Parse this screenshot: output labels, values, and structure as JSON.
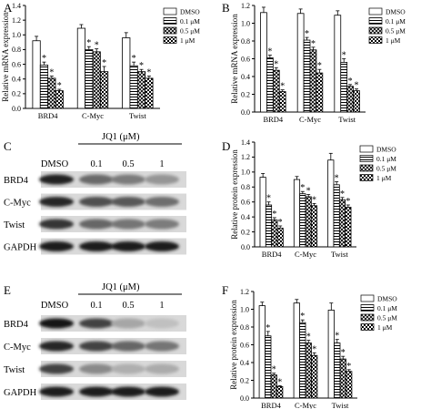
{
  "panel_letters": {
    "A": "A",
    "B": "B",
    "C": "C",
    "D": "D",
    "E": "E",
    "F": "F"
  },
  "blots": [
    {
      "panel": "C",
      "header_drug": "JQ1 (μM)",
      "lane_labels": [
        "DMSO",
        "0.1",
        "0.5",
        "1"
      ],
      "bands": [
        {
          "label": "BRD4",
          "intensity": [
            0.93,
            0.6,
            0.52,
            0.4
          ]
        },
        {
          "label": "C-Myc",
          "intensity": [
            0.92,
            0.72,
            0.68,
            0.58
          ]
        },
        {
          "label": "Twist",
          "intensity": [
            0.85,
            0.62,
            0.55,
            0.52
          ]
        },
        {
          "label": "GAPDH",
          "intensity": [
            0.95,
            0.95,
            0.95,
            0.95
          ]
        }
      ]
    },
    {
      "panel": "E",
      "header_drug": "JQ1 (μM)",
      "lane_labels": [
        "DMSO",
        "0.1",
        "0.5",
        "1"
      ],
      "bands": [
        {
          "label": "BRD4",
          "intensity": [
            1.0,
            0.78,
            0.32,
            0.2
          ]
        },
        {
          "label": "C-Myc",
          "intensity": [
            0.92,
            0.78,
            0.62,
            0.55
          ]
        },
        {
          "label": "Twist",
          "intensity": [
            0.78,
            0.45,
            0.28,
            0.3
          ]
        },
        {
          "label": "GAPDH",
          "intensity": [
            0.95,
            0.95,
            0.95,
            0.95
          ]
        }
      ]
    }
  ],
  "chart_data": [
    {
      "panel": "A",
      "type": "bar",
      "title": "",
      "xlabel": "",
      "ylabel": "Relative mRNA expression",
      "ylim": [
        0,
        1.4
      ],
      "yticks": [
        "0.0",
        "0.2",
        "0.4",
        "0.6",
        "0.8",
        "1.0",
        "1.2",
        "1.4"
      ],
      "categories": [
        "BRD4",
        "C-Myc",
        "Twist"
      ],
      "legend_position": "top-right",
      "series": [
        {
          "name": "DMSO",
          "pattern": "white",
          "values": [
            0.92,
            1.09,
            0.96
          ],
          "errors": [
            0.06,
            0.05,
            0.07
          ],
          "stars": [
            "",
            "",
            ""
          ]
        },
        {
          "name": "0.1 μM",
          "pattern": "horizontal",
          "values": [
            0.59,
            0.8,
            0.58
          ],
          "errors": [
            0.04,
            0.04,
            0.05
          ],
          "stars": [
            "*",
            "*",
            "*"
          ]
        },
        {
          "name": "0.5 μM",
          "pattern": "crosshatch",
          "values": [
            0.41,
            0.77,
            0.5
          ],
          "errors": [
            0.03,
            0.04,
            0.03
          ],
          "stars": [
            "*",
            "*",
            "*"
          ]
        },
        {
          "name": "1 μM",
          "pattern": "checker",
          "values": [
            0.24,
            0.5,
            0.41
          ],
          "errors": [
            0.02,
            0.07,
            0.03
          ],
          "stars": [
            "*",
            "*",
            "*"
          ]
        }
      ]
    },
    {
      "panel": "B",
      "type": "bar",
      "title": "",
      "xlabel": "",
      "ylabel": "Relative mRNA expression",
      "ylim": [
        0,
        1.2
      ],
      "yticks": [
        "0.0",
        "0.2",
        "0.4",
        "0.6",
        "0.8",
        "1.0",
        "1.2"
      ],
      "categories": [
        "BRD4",
        "C-Myc",
        "Twist"
      ],
      "legend_position": "top-right",
      "series": [
        {
          "name": "DMSO",
          "pattern": "white",
          "values": [
            1.12,
            1.11,
            1.09
          ],
          "errors": [
            0.06,
            0.05,
            0.05
          ],
          "stars": [
            "",
            "",
            ""
          ]
        },
        {
          "name": "0.1 μM",
          "pattern": "horizontal",
          "values": [
            0.61,
            0.81,
            0.56
          ],
          "errors": [
            0.03,
            0.03,
            0.04
          ],
          "stars": [
            "*",
            "*",
            "*"
          ]
        },
        {
          "name": "0.5 μM",
          "pattern": "crosshatch",
          "values": [
            0.47,
            0.7,
            0.29
          ],
          "errors": [
            0.03,
            0.03,
            0.02
          ],
          "stars": [
            "*",
            "*",
            "*"
          ]
        },
        {
          "name": "1 μM",
          "pattern": "checker",
          "values": [
            0.23,
            0.44,
            0.24
          ],
          "errors": [
            0.02,
            0.04,
            0.02
          ],
          "stars": [
            "*",
            "*",
            "*"
          ]
        }
      ]
    },
    {
      "panel": "D",
      "type": "bar",
      "title": "",
      "xlabel": "",
      "ylabel": "Relative protein expression",
      "ylim": [
        0,
        1.4
      ],
      "yticks": [
        "0.0",
        "0.2",
        "0.4",
        "0.6",
        "0.8",
        "1.0",
        "1.2",
        "1.4"
      ],
      "categories": [
        "BRD4",
        "C-Myc",
        "Twist"
      ],
      "legend_position": "top-right",
      "series": [
        {
          "name": "DMSO",
          "pattern": "white",
          "values": [
            0.93,
            0.9,
            1.16
          ],
          "errors": [
            0.05,
            0.04,
            0.09
          ],
          "stars": [
            "",
            "",
            ""
          ]
        },
        {
          "name": "0.1 μM",
          "pattern": "horizontal",
          "values": [
            0.56,
            0.71,
            0.83
          ],
          "errors": [
            0.04,
            0.03,
            0.04
          ],
          "stars": [
            "*",
            "*",
            "*"
          ]
        },
        {
          "name": "0.5 μM",
          "pattern": "crosshatch",
          "values": [
            0.36,
            0.67,
            0.63
          ],
          "errors": [
            0.03,
            0.03,
            0.03
          ],
          "stars": [
            "*",
            "*",
            "*"
          ]
        },
        {
          "name": "1 μM",
          "pattern": "checker",
          "values": [
            0.25,
            0.55,
            0.53
          ],
          "errors": [
            0.03,
            0.03,
            0.03
          ],
          "stars": [
            "*",
            "*",
            "*"
          ]
        }
      ]
    },
    {
      "panel": "F",
      "type": "bar",
      "title": "",
      "xlabel": "",
      "ylabel": "Relative protein expression",
      "ylim": [
        0,
        1.2
      ],
      "yticks": [
        "0.0",
        "0.2",
        "0.4",
        "0.6",
        "0.8",
        "1.0",
        "1.2"
      ],
      "categories": [
        "BRD4",
        "C-Myc",
        "Twist"
      ],
      "legend_position": "top-right",
      "series": [
        {
          "name": "DMSO",
          "pattern": "white",
          "values": [
            1.04,
            1.07,
            0.99
          ],
          "errors": [
            0.04,
            0.04,
            0.08
          ],
          "stars": [
            "",
            "",
            ""
          ]
        },
        {
          "name": "0.1 μM",
          "pattern": "horizontal",
          "values": [
            0.7,
            0.85,
            0.62
          ],
          "errors": [
            0.05,
            0.03,
            0.04
          ],
          "stars": [
            "*",
            "*",
            "*"
          ]
        },
        {
          "name": "0.5 μM",
          "pattern": "crosshatch",
          "values": [
            0.26,
            0.62,
            0.44
          ],
          "errors": [
            0.02,
            0.03,
            0.03
          ],
          "stars": [
            "*",
            "*",
            "*"
          ]
        },
        {
          "name": "1 μM",
          "pattern": "checker",
          "values": [
            0.13,
            0.48,
            0.3
          ],
          "errors": [
            0.01,
            0.03,
            0.02
          ],
          "stars": [
            "*",
            "*",
            "*"
          ]
        }
      ]
    }
  ]
}
